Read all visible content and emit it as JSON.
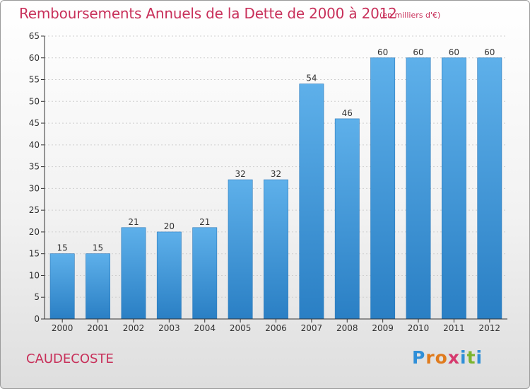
{
  "header": {
    "title": "Remboursements Annuels de la Dette de 2000 à 2012",
    "unit": "(en milliers d'€)"
  },
  "footer": {
    "commune": "CAUDECOSTE",
    "logo_letters": [
      "P",
      "r",
      "o",
      "x",
      "i",
      "t",
      "i"
    ],
    "logo_colors": [
      "#2f8fd8",
      "#e07b1d",
      "#e07b1d",
      "#d63a6e",
      "#2f8fd8",
      "#7bb52f",
      "#2f8fd8"
    ]
  },
  "colors": {
    "bar": "#4ea3e3",
    "bar_dark": "#2a7fc4",
    "text": "#c8305a",
    "axis": "#333333",
    "grid": "#cfcfcf"
  },
  "chart_data": {
    "type": "bar",
    "title": "Remboursements Annuels de la Dette de 2000 à 2012",
    "xlabel": "",
    "ylabel": "",
    "categories": [
      "2000",
      "2001",
      "2002",
      "2003",
      "2004",
      "2005",
      "2006",
      "2007",
      "2008",
      "2009",
      "2010",
      "2011",
      "2012"
    ],
    "values": [
      15,
      15,
      21,
      20,
      21,
      32,
      32,
      54,
      46,
      60,
      60,
      60,
      60
    ],
    "ylim": [
      0,
      65
    ],
    "yticks": [
      0,
      5,
      10,
      15,
      20,
      25,
      30,
      35,
      40,
      45,
      50,
      55,
      60,
      65
    ],
    "grid": true,
    "show_value_labels": true
  }
}
